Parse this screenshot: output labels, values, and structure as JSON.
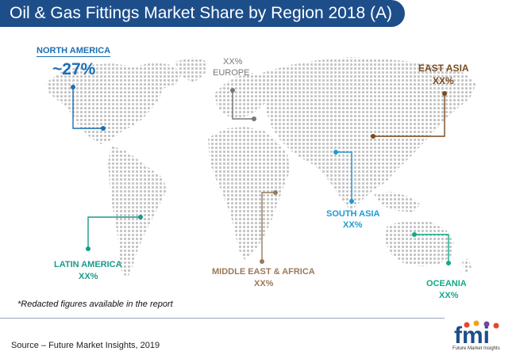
{
  "header": {
    "title": "Oil & Gas Fittings Market Share by Region 2018 (A)"
  },
  "regions": {
    "north_america": {
      "name": "NORTH AMERICA",
      "value": "~27%",
      "color": "#1b6fb5"
    },
    "europe": {
      "name": "EUROPE",
      "value": "XX%",
      "color": "#777777"
    },
    "east_asia": {
      "name": "EAST ASIA",
      "value": "XX%",
      "color": "#7a4a1f"
    },
    "south_asia": {
      "name": "SOUTH ASIA",
      "value": "XX%",
      "color": "#1c9ad6"
    },
    "latin_america": {
      "name": "LATIN AMERICA",
      "value": "XX%",
      "color": "#1a9a8a"
    },
    "mea": {
      "name": "MIDDLE EAST & AFRICA",
      "value": "XX%",
      "color": "#9b7a58"
    },
    "oceania": {
      "name": "OCEANIA",
      "value": "XX%",
      "color": "#12a889"
    }
  },
  "footer": {
    "note": "*Redacted figures available in the report",
    "source": "Source – Future Market Insights, 2019",
    "logo_text": "fmi",
    "logo_subtext": "Future Market Insights"
  }
}
